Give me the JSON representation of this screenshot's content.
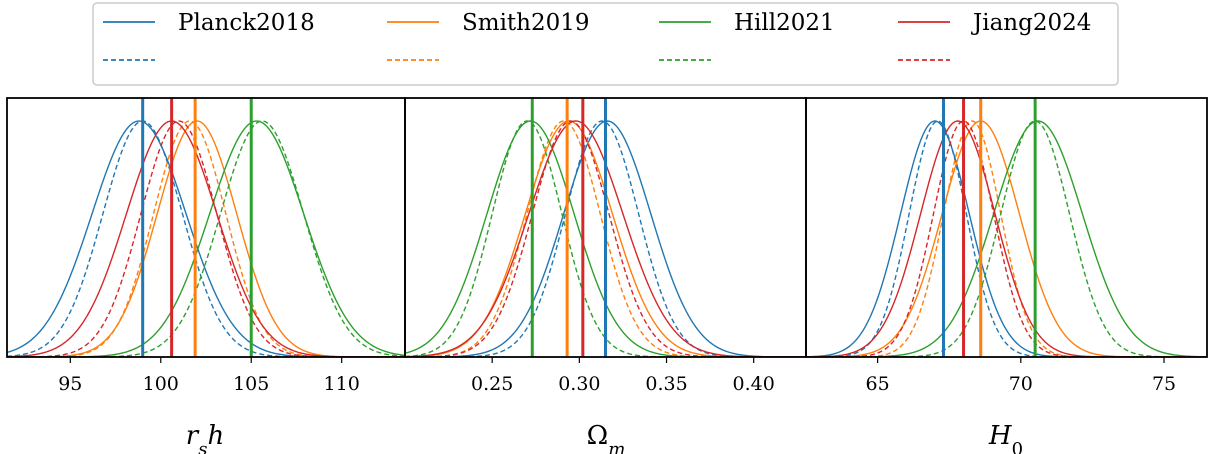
{
  "legend": {
    "entries": [
      {
        "label": "Planck2018",
        "color": "#1f77b4"
      },
      {
        "label": "Smith2019",
        "color": "#ff7f0e"
      },
      {
        "label": "Hill2021",
        "color": "#2ca02c"
      },
      {
        "label": "Jiang2024",
        "color": "#d62728"
      }
    ]
  },
  "chart_data": [
    {
      "type": "line",
      "xlabel": "r_s h",
      "xticks": [
        95,
        100,
        105,
        110
      ],
      "xlim": [
        91.5,
        113.5
      ],
      "series": [
        {
          "name": "Planck2018",
          "color": "#1f77b4",
          "solid": {
            "mean": 98.8,
            "sigma": 2.6
          },
          "dashed": {
            "mean": 99.0,
            "sigma": 2.2
          },
          "vline": 99.0
        },
        {
          "name": "Smith2019",
          "color": "#ff7f0e",
          "solid": {
            "mean": 102.0,
            "sigma": 2.2
          },
          "dashed": {
            "mean": 101.6,
            "sigma": 2.0
          },
          "vline": 101.9
        },
        {
          "name": "Hill2021",
          "color": "#2ca02c",
          "solid": {
            "mean": 105.3,
            "sigma": 2.6
          },
          "dashed": {
            "mean": 105.6,
            "sigma": 2.3
          },
          "vline": 105.0
        },
        {
          "name": "Jiang2024",
          "color": "#d62728",
          "solid": {
            "mean": 100.6,
            "sigma": 2.5
          },
          "dashed": {
            "mean": 101.0,
            "sigma": 2.1
          },
          "vline": 100.6
        }
      ]
    },
    {
      "type": "line",
      "xlabel": "Ω_m",
      "xticks": [
        "0.25",
        "0.30",
        "0.35",
        "0.40"
      ],
      "xlim": [
        0.2,
        0.43
      ],
      "series": [
        {
          "name": "Planck2018",
          "color": "#1f77b4",
          "solid": {
            "mean": 0.316,
            "sigma": 0.025
          },
          "dashed": {
            "mean": 0.313,
            "sigma": 0.021
          },
          "vline": 0.315
        },
        {
          "name": "Smith2019",
          "color": "#ff7f0e",
          "solid": {
            "mean": 0.294,
            "sigma": 0.025
          },
          "dashed": {
            "mean": 0.291,
            "sigma": 0.021
          },
          "vline": 0.293
        },
        {
          "name": "Hill2021",
          "color": "#2ca02c",
          "solid": {
            "mean": 0.272,
            "sigma": 0.025
          },
          "dashed": {
            "mean": 0.27,
            "sigma": 0.02
          },
          "vline": 0.273
        },
        {
          "name": "Jiang2024",
          "color": "#d62728",
          "solid": {
            "mean": 0.298,
            "sigma": 0.027
          },
          "dashed": {
            "mean": 0.295,
            "sigma": 0.022
          },
          "vline": 0.302
        }
      ]
    },
    {
      "type": "line",
      "xlabel": "H_0",
      "xticks": [
        65,
        70,
        75
      ],
      "xlim": [
        62.5,
        76.5
      ],
      "series": [
        {
          "name": "Planck2018",
          "color": "#1f77b4",
          "solid": {
            "mean": 67.0,
            "sigma": 1.2
          },
          "dashed": {
            "mean": 67.1,
            "sigma": 1.0
          },
          "vline": 67.3
        },
        {
          "name": "Smith2019",
          "color": "#ff7f0e",
          "solid": {
            "mean": 68.6,
            "sigma": 1.35
          },
          "dashed": {
            "mean": 68.3,
            "sigma": 1.0
          },
          "vline": 68.6
        },
        {
          "name": "Hill2021",
          "color": "#2ca02c",
          "solid": {
            "mean": 70.6,
            "sigma": 1.55
          },
          "dashed": {
            "mean": 70.5,
            "sigma": 1.2
          },
          "vline": 70.5
        },
        {
          "name": "Jiang2024",
          "color": "#d62728",
          "solid": {
            "mean": 67.8,
            "sigma": 1.3
          },
          "dashed": {
            "mean": 68.0,
            "sigma": 1.05
          },
          "vline": 68.0
        }
      ]
    }
  ]
}
